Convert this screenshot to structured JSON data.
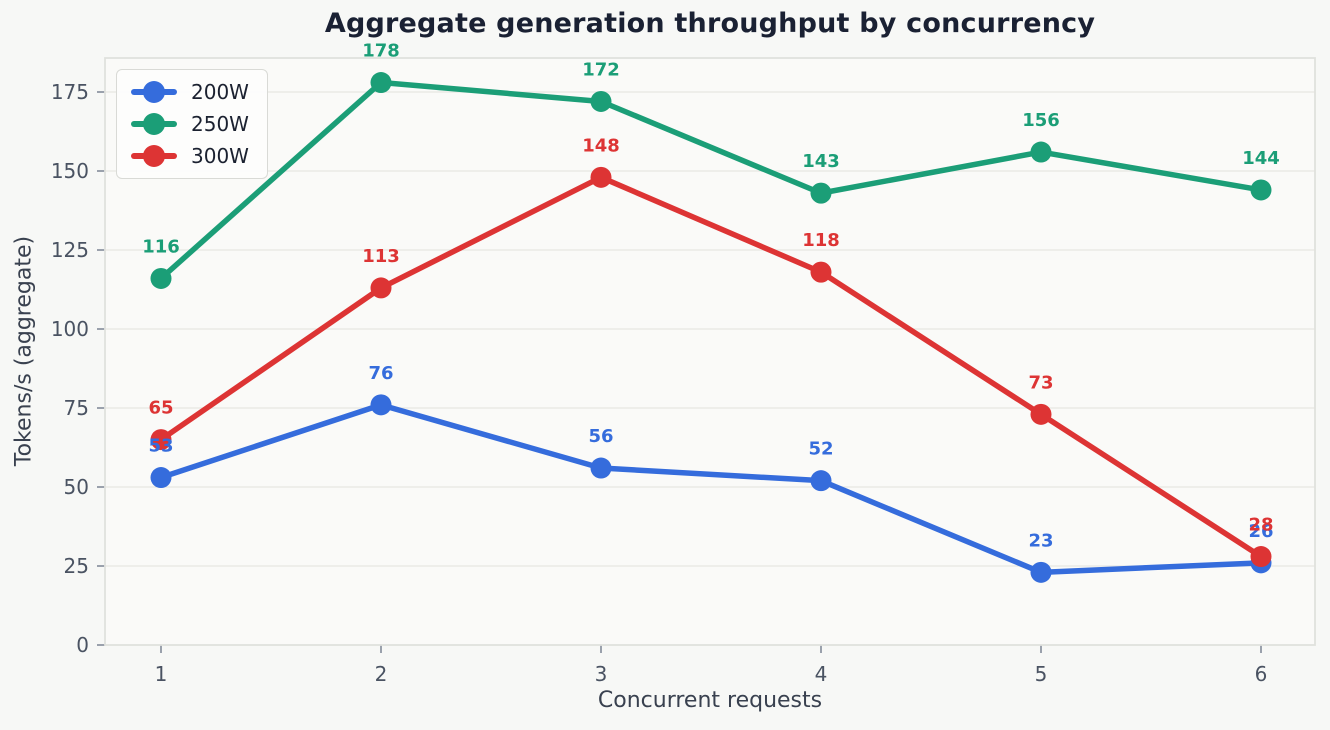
{
  "chart_data": {
    "type": "line",
    "title": "Aggregate generation throughput by concurrency",
    "xlabel": "Concurrent requests",
    "ylabel": "Tokens/s (aggregate)",
    "x": [
      1,
      2,
      3,
      4,
      5,
      6
    ],
    "series": [
      {
        "name": "200W",
        "color": "#356cdc",
        "values": [
          53,
          76,
          56,
          52,
          23,
          26
        ]
      },
      {
        "name": "250W",
        "color": "#1b9e77",
        "values": [
          116,
          178,
          172,
          143,
          156,
          144
        ]
      },
      {
        "name": "300W",
        "color": "#dd3434",
        "values": [
          65,
          113,
          148,
          118,
          73,
          28
        ]
      }
    ],
    "yticks": [
      0,
      25,
      50,
      75,
      100,
      125,
      150,
      175
    ],
    "ylim": [
      0,
      185.7
    ],
    "grid": "horizontal-only",
    "legend_position": "upper-left",
    "point_labels_visible": true
  },
  "style_colors": {
    "figure_background": "#f7f8f6",
    "plot_background": "#fafaf8",
    "grid_color": "#e9eae6",
    "border_color": "#e0e1dd",
    "tick_mark_color": "#9aa1ac",
    "tick_label_color": "#4a5362",
    "axis_label_color": "#39414f",
    "title_color": "#1a2133"
  }
}
